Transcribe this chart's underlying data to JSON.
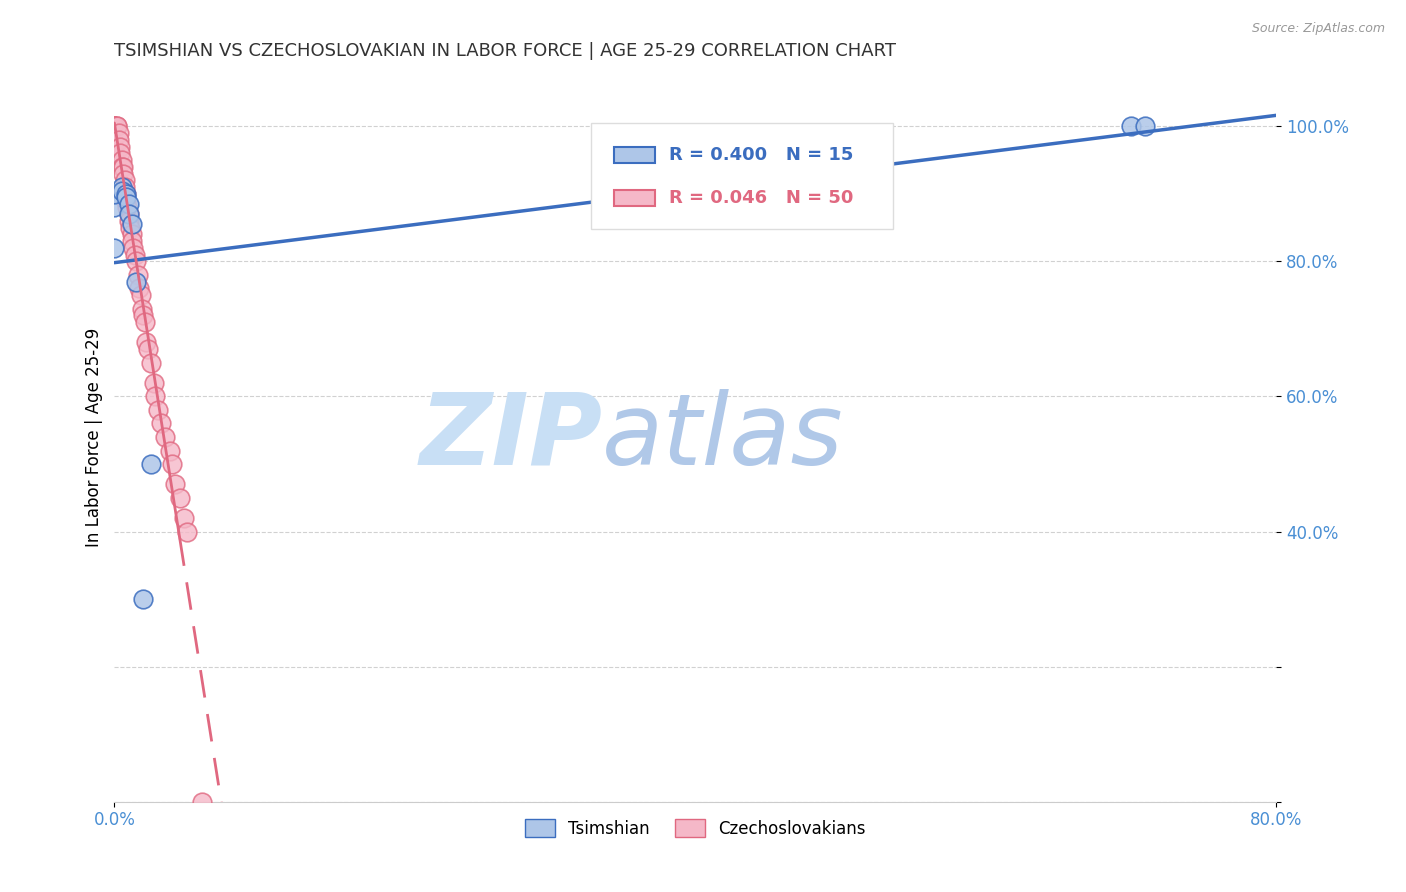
{
  "title": "TSIMSHIAN VS CZECHOSLOVAKIAN IN LABOR FORCE | AGE 25-29 CORRELATION CHART",
  "source": "Source: ZipAtlas.com",
  "ylabel": "In Labor Force | Age 25-29",
  "xlim": [
    0.0,
    0.8
  ],
  "ylim": [
    0.0,
    1.08
  ],
  "legend1_r": "0.400",
  "legend1_n": "15",
  "legend2_r": "0.046",
  "legend2_n": "50",
  "tsimshian_x": [
    0.0,
    0.0,
    0.0,
    0.005,
    0.005,
    0.008,
    0.008,
    0.01,
    0.01,
    0.012,
    0.015,
    0.02,
    0.025,
    0.7,
    0.71
  ],
  "tsimshian_y": [
    0.82,
    0.88,
    0.9,
    0.91,
    0.905,
    0.9,
    0.895,
    0.885,
    0.87,
    0.855,
    0.77,
    0.3,
    0.5,
    1.0,
    1.0
  ],
  "czechoslovakian_x": [
    0.0,
    0.0,
    0.0,
    0.0,
    0.0,
    0.0,
    0.002,
    0.002,
    0.003,
    0.003,
    0.004,
    0.004,
    0.005,
    0.005,
    0.006,
    0.006,
    0.007,
    0.007,
    0.008,
    0.008,
    0.009,
    0.01,
    0.01,
    0.011,
    0.012,
    0.012,
    0.013,
    0.014,
    0.015,
    0.016,
    0.017,
    0.018,
    0.019,
    0.02,
    0.021,
    0.022,
    0.023,
    0.025,
    0.027,
    0.028,
    0.03,
    0.032,
    0.035,
    0.038,
    0.04,
    0.042,
    0.045,
    0.048,
    0.05,
    0.06
  ],
  "czechoslovakian_y": [
    1.0,
    1.0,
    1.0,
    1.0,
    0.97,
    0.96,
    1.0,
    1.0,
    0.99,
    0.98,
    0.97,
    0.96,
    0.95,
    0.94,
    0.94,
    0.93,
    0.92,
    0.91,
    0.9,
    0.89,
    0.88,
    0.87,
    0.86,
    0.85,
    0.84,
    0.83,
    0.82,
    0.81,
    0.8,
    0.78,
    0.76,
    0.75,
    0.73,
    0.72,
    0.71,
    0.68,
    0.67,
    0.65,
    0.62,
    0.6,
    0.58,
    0.56,
    0.54,
    0.52,
    0.5,
    0.47,
    0.45,
    0.42,
    0.4,
    0.0
  ],
  "tsimshian_color": "#aec6e8",
  "czechoslovakian_color": "#f5b8c8",
  "tsimshian_line_color": "#3b6dbf",
  "czechoslovakian_line_color": "#e06880",
  "watermark_zip_color": "#c8dff5",
  "watermark_atlas_color": "#b0c8e8",
  "grid_color": "#cccccc",
  "axis_label_color": "#4a8fd4",
  "title_color": "#333333",
  "y_ticks": [
    0.0,
    0.2,
    0.4,
    0.6,
    0.8,
    1.0
  ],
  "y_tick_labels": [
    "",
    "",
    "40.0%",
    "60.0%",
    "80.0%",
    "100.0%"
  ],
  "x_ticks": [
    0.0,
    0.8
  ],
  "x_tick_labels": [
    "0.0%",
    "80.0%"
  ]
}
